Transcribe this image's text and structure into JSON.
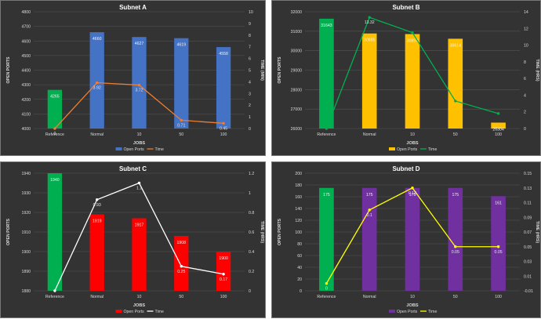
{
  "chart_data": [
    {
      "type": "bar",
      "title": "Subnet A",
      "categories": [
        "Reference",
        "Normal",
        "10",
        "50",
        "100"
      ],
      "xlabel": "JOBS",
      "ylabel": "OPEN PORTS",
      "y2label": "TIME (MIN)",
      "ylim": [
        4000,
        4800
      ],
      "yticks": [
        4000,
        4100,
        4200,
        4300,
        4400,
        4500,
        4600,
        4700,
        4800
      ],
      "y2lim": [
        0,
        10
      ],
      "y2ticks": [
        0,
        1,
        2,
        3,
        4,
        5,
        6,
        7,
        8,
        9,
        10
      ],
      "bar_colors": [
        "#00b050",
        "#4472c4",
        "#4472c4",
        "#4472c4",
        "#4472c4"
      ],
      "series": [
        {
          "name": "Open Ports",
          "axis": "left",
          "kind": "bar",
          "color": "#4472c4",
          "values": [
            4265,
            4660,
            4627,
            4619,
            4558
          ],
          "labels": [
            "4265",
            "4660",
            "4627",
            "4619",
            "4558"
          ]
        },
        {
          "name": "Time",
          "axis": "right",
          "kind": "line",
          "color": "#ed7d31",
          "values": [
            0,
            3.92,
            3.72,
            0.71,
            0.45
          ],
          "labels": [
            "0",
            "3.92",
            "3.72",
            "0.71",
            "0.45"
          ]
        }
      ],
      "legend": [
        "Open Ports",
        "Time"
      ],
      "legend_position": "bottom"
    },
    {
      "type": "bar",
      "title": "Subnet B",
      "categories": [
        "Reference",
        "Normal",
        "10",
        "50",
        "100"
      ],
      "xlabel": "JOBS",
      "ylabel": "OPEN PORTS",
      "y2label": "TIME (HRS)",
      "ylim": [
        26000,
        32000
      ],
      "yticks": [
        26000,
        27000,
        28000,
        29000,
        30000,
        31000,
        32000
      ],
      "y2lim": [
        0,
        14
      ],
      "y2ticks": [
        0,
        2,
        4,
        6,
        8,
        10,
        12,
        14
      ],
      "bar_colors": [
        "#00b050",
        "#ffc000",
        "#ffc000",
        "#ffc000",
        "#ffc000"
      ],
      "series": [
        {
          "name": "Open Ports",
          "axis": "left",
          "kind": "bar",
          "color": "#ffc000",
          "values": [
            31643,
            30885,
            30854,
            30614,
            26304
          ],
          "labels": [
            "31643",
            "30885",
            "30854",
            "30614",
            "26304"
          ]
        },
        {
          "name": "Time",
          "axis": "right",
          "kind": "line",
          "color": "#00b050",
          "values": [
            0,
            13.32,
            11.5,
            3.3,
            1.8
          ],
          "labels": [
            "",
            "13.32",
            "",
            "",
            ""
          ]
        }
      ],
      "legend": [
        "Open Ports",
        "Time"
      ],
      "legend_position": "bottom"
    },
    {
      "type": "bar",
      "title": "Subnet C",
      "categories": [
        "Reference",
        "Normal",
        "10",
        "50",
        "100"
      ],
      "xlabel": "JOBS",
      "ylabel": "OPEN PORTS",
      "y2label": "TIME (HRS)",
      "ylim": [
        1880,
        1940
      ],
      "yticks": [
        1880,
        1890,
        1900,
        1910,
        1920,
        1930,
        1940
      ],
      "y2lim": [
        0,
        1.2
      ],
      "y2ticks": [
        0,
        0.2,
        0.4,
        0.6,
        0.8,
        1,
        1.2
      ],
      "bar_colors": [
        "#00b050",
        "#ff0000",
        "#ff0000",
        "#ff0000",
        "#ff0000"
      ],
      "series": [
        {
          "name": "Open Ports",
          "axis": "left",
          "kind": "bar",
          "color": "#ff0000",
          "values": [
            1940,
            1919,
            1917,
            1908,
            1900
          ],
          "labels": [
            "1940",
            "1919",
            "1917",
            "1908",
            "1900"
          ]
        },
        {
          "name": "Time",
          "axis": "right",
          "kind": "line",
          "color": "#ffffff",
          "values": [
            0,
            0.93,
            1.1,
            0.25,
            0.17
          ],
          "labels": [
            "",
            "0.93",
            "1.1",
            "0.25",
            "0.17"
          ]
        }
      ],
      "legend": [
        "Open Ports",
        "Time"
      ],
      "legend_position": "bottom"
    },
    {
      "type": "bar",
      "title": "Subnet D",
      "categories": [
        "Reference",
        "Normal",
        "10",
        "50",
        "100"
      ],
      "xlabel": "JOBS",
      "ylabel": "OPEN PORTS",
      "y2label": "TIME (HRS)",
      "ylim": [
        0,
        200
      ],
      "yticks": [
        0,
        20,
        40,
        60,
        80,
        100,
        120,
        140,
        160,
        180,
        200
      ],
      "y2lim": [
        -0.01,
        0.15
      ],
      "y2ticks": [
        -0.01,
        0.01,
        0.03,
        0.05,
        0.07,
        0.09,
        0.11,
        0.13,
        0.15
      ],
      "bar_colors": [
        "#00b050",
        "#7030a0",
        "#7030a0",
        "#7030a0",
        "#7030a0"
      ],
      "series": [
        {
          "name": "Open Ports",
          "axis": "left",
          "kind": "bar",
          "color": "#7030a0",
          "values": [
            175,
            175,
            175,
            175,
            161
          ],
          "labels": [
            "175",
            "175",
            "175",
            "175",
            "161"
          ]
        },
        {
          "name": "Time",
          "axis": "right",
          "kind": "line",
          "color": "#ffff00",
          "values": [
            0,
            0.1,
            0.13,
            0.05,
            0.05
          ],
          "labels": [
            "0",
            "0.1",
            "0.13",
            "0.05",
            "0.05"
          ]
        }
      ],
      "legend": [
        "Open Ports",
        "Time"
      ],
      "legend_position": "bottom"
    }
  ]
}
